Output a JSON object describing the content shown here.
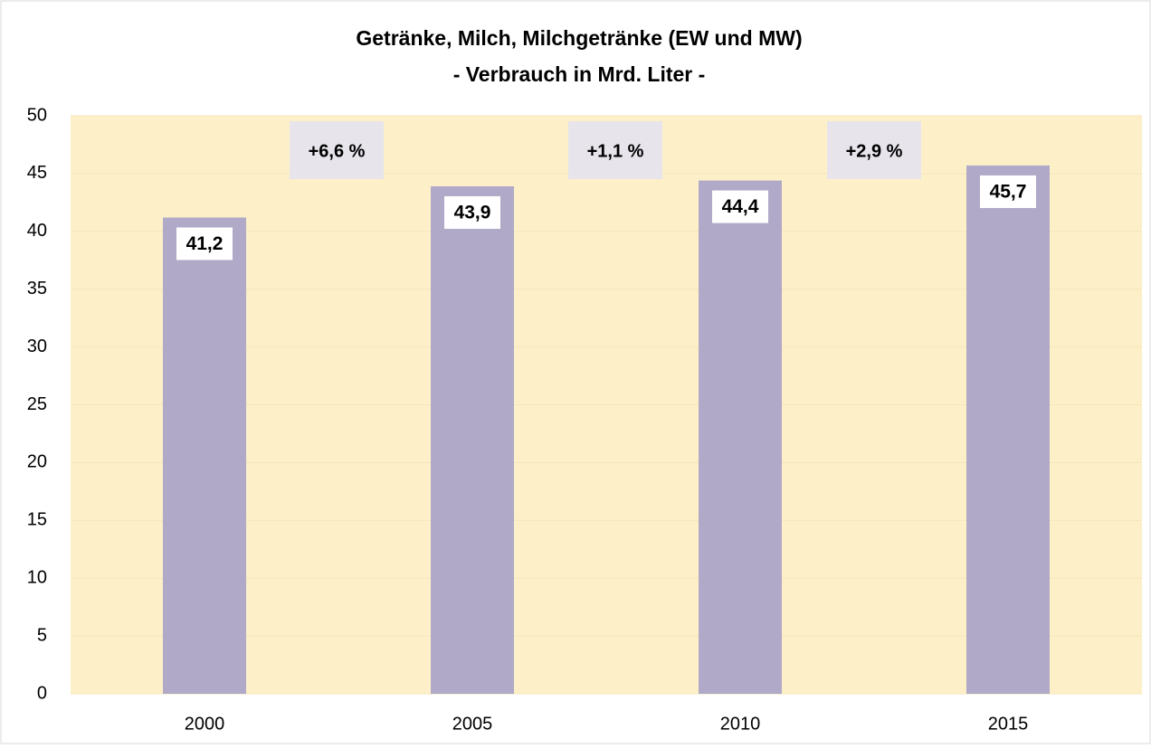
{
  "chart_data": {
    "type": "bar",
    "title": "Getränke, Milch, Milchgetränke (EW und MW)",
    "subtitle": "- Verbrauch in Mrd. Liter -",
    "categories": [
      "2000",
      "2005",
      "2010",
      "2015"
    ],
    "values": [
      41.2,
      43.9,
      44.4,
      45.7
    ],
    "value_labels": [
      "41,2",
      "43,9",
      "44,4",
      "45,7"
    ],
    "annotations": [
      "+6,6 %",
      "+1,1 %",
      "+2,9 %"
    ],
    "color": "#b0a9c8",
    "ylim": [
      0,
      50
    ],
    "yticks": [
      0,
      5,
      10,
      15,
      20,
      25,
      30,
      35,
      40,
      45,
      50
    ],
    "grid": true
  }
}
